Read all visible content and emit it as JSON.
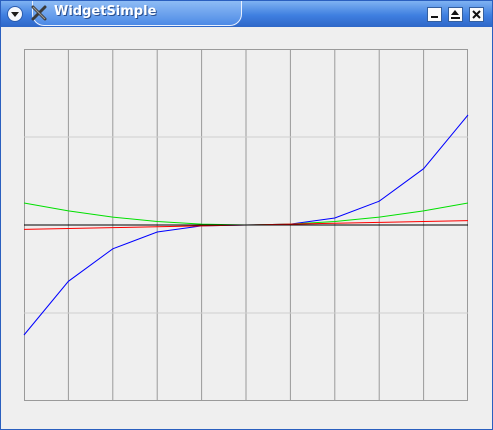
{
  "window": {
    "title": "WidgetSimple",
    "icon": "x-app-icon",
    "controls": [
      "menu-chevron-icon",
      "minimize-icon",
      "shade-icon",
      "close-icon"
    ]
  },
  "chart_data": {
    "type": "line",
    "title": "",
    "xlabel": "",
    "ylabel": "",
    "x": [
      -5,
      -4,
      -3,
      -2,
      -1,
      0,
      1,
      2,
      3,
      4,
      5
    ],
    "xlim": [
      -5,
      5
    ],
    "ylim": [
      -1,
      1
    ],
    "grid": {
      "vertical_lines": 10,
      "horizontal_lines": 4
    },
    "legend": false,
    "series": [
      {
        "color": "#0000ff",
        "values": [
          -0.625,
          -0.32,
          -0.135,
          -0.04,
          -0.005,
          0.0,
          0.005,
          0.04,
          0.135,
          0.32,
          0.625
        ]
      },
      {
        "color": "#00e000",
        "values": [
          0.125,
          0.08,
          0.045,
          0.02,
          0.005,
          0.0,
          0.005,
          0.02,
          0.045,
          0.08,
          0.125
        ]
      },
      {
        "color": "#ff0000",
        "values": [
          -0.025,
          -0.02,
          -0.015,
          -0.01,
          -0.005,
          0.0,
          0.005,
          0.01,
          0.015,
          0.02,
          0.025
        ]
      },
      {
        "color": "#000000",
        "values": [
          0.0,
          0.0,
          0.0,
          0.0,
          0.0,
          0.0,
          0.0,
          0.0,
          0.0,
          0.0,
          0.0
        ]
      }
    ]
  }
}
